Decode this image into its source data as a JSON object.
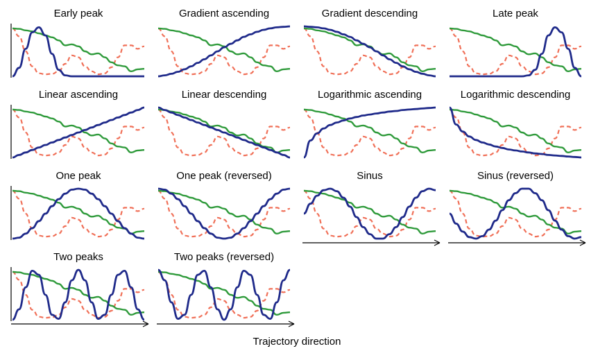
{
  "figure": {
    "xlabel": "Trajectory direction"
  },
  "colors": {
    "profile": "#1f2a8a",
    "green": "#2e9a3a",
    "dashed": "#f07058",
    "axis": "#000000"
  },
  "chart_data": {
    "type": "line",
    "ylim": [
      0,
      1
    ],
    "xlim": [
      0,
      1
    ],
    "grid": false,
    "shared_x": [
      0,
      0.05,
      0.1,
      0.15,
      0.2,
      0.25,
      0.3,
      0.35,
      0.4,
      0.45,
      0.5,
      0.55,
      0.6,
      0.65,
      0.7,
      0.75,
      0.8,
      0.85,
      0.9,
      0.95,
      1
    ],
    "background_series": {
      "green": [
        0.96,
        0.95,
        0.92,
        0.9,
        0.86,
        0.82,
        0.78,
        0.72,
        0.62,
        0.64,
        0.6,
        0.5,
        0.44,
        0.46,
        0.38,
        0.28,
        0.22,
        0.2,
        0.1,
        0.14,
        0.15
      ],
      "dashed": [
        0.96,
        0.8,
        0.5,
        0.2,
        0.06,
        0.04,
        0.05,
        0.1,
        0.25,
        0.42,
        0.38,
        0.2,
        0.1,
        0.04,
        0.06,
        0.18,
        0.38,
        0.62,
        0.62,
        0.55,
        0.6
      ]
    },
    "panels": [
      {
        "title": "Early peak",
        "y": [
          0.0,
          0.17,
          0.55,
          0.88,
          0.98,
          0.82,
          0.45,
          0.13,
          0.02,
          0.0,
          0.0,
          0.0,
          0.0,
          0.0,
          0.0,
          0.0,
          0.0,
          0.0,
          0.0,
          0.0,
          0.0
        ]
      },
      {
        "title": "Gradient ascending",
        "y": [
          0.0,
          0.02,
          0.05,
          0.09,
          0.14,
          0.2,
          0.27,
          0.34,
          0.42,
          0.5,
          0.58,
          0.65,
          0.72,
          0.79,
          0.84,
          0.89,
          0.93,
          0.96,
          0.98,
          0.99,
          1.0
        ]
      },
      {
        "title": "Gradient descending",
        "y": [
          1.0,
          0.99,
          0.98,
          0.96,
          0.93,
          0.89,
          0.84,
          0.79,
          0.72,
          0.65,
          0.58,
          0.5,
          0.42,
          0.34,
          0.27,
          0.2,
          0.14,
          0.09,
          0.05,
          0.02,
          0.0
        ]
      },
      {
        "title": "Late peak",
        "y": [
          0.0,
          0.0,
          0.0,
          0.0,
          0.0,
          0.0,
          0.0,
          0.0,
          0.0,
          0.0,
          0.0,
          0.0,
          0.02,
          0.13,
          0.45,
          0.82,
          0.98,
          0.88,
          0.55,
          0.17,
          0.0
        ]
      },
      {
        "title": "Linear ascending",
        "y": [
          0.0,
          0.05,
          0.1,
          0.15,
          0.2,
          0.25,
          0.3,
          0.35,
          0.4,
          0.45,
          0.5,
          0.55,
          0.6,
          0.65,
          0.7,
          0.75,
          0.8,
          0.85,
          0.9,
          0.95,
          1.0
        ]
      },
      {
        "title": "Linear descending",
        "y": [
          1.0,
          0.95,
          0.9,
          0.85,
          0.8,
          0.75,
          0.7,
          0.65,
          0.6,
          0.55,
          0.5,
          0.45,
          0.4,
          0.35,
          0.3,
          0.25,
          0.2,
          0.15,
          0.1,
          0.05,
          0.0
        ]
      },
      {
        "title": "Logarithmic ascending",
        "y": [
          0.0,
          0.34,
          0.48,
          0.58,
          0.65,
          0.7,
          0.74,
          0.78,
          0.81,
          0.84,
          0.86,
          0.88,
          0.9,
          0.92,
          0.93,
          0.95,
          0.96,
          0.97,
          0.98,
          0.99,
          1.0
        ]
      },
      {
        "title": "Logarithmic descending",
        "y": [
          1.0,
          0.66,
          0.52,
          0.42,
          0.35,
          0.3,
          0.26,
          0.22,
          0.19,
          0.16,
          0.14,
          0.12,
          0.1,
          0.08,
          0.07,
          0.05,
          0.04,
          0.03,
          0.02,
          0.01,
          0.0
        ]
      },
      {
        "title": "One peak",
        "y": [
          0.0,
          0.02,
          0.1,
          0.21,
          0.35,
          0.5,
          0.65,
          0.79,
          0.9,
          0.98,
          1.0,
          0.98,
          0.9,
          0.79,
          0.65,
          0.5,
          0.35,
          0.21,
          0.1,
          0.02,
          0.0
        ]
      },
      {
        "title": "One peak (reversed)",
        "y": [
          1.0,
          0.98,
          0.9,
          0.79,
          0.65,
          0.5,
          0.35,
          0.21,
          0.1,
          0.02,
          0.0,
          0.02,
          0.1,
          0.21,
          0.35,
          0.5,
          0.65,
          0.79,
          0.9,
          0.98,
          1.0
        ]
      },
      {
        "title": "Sinus",
        "y": [
          0.5,
          0.7,
          0.86,
          0.97,
          1.0,
          0.95,
          0.82,
          0.64,
          0.43,
          0.23,
          0.09,
          0.0,
          0.0,
          0.09,
          0.23,
          0.43,
          0.64,
          0.82,
          0.95,
          1.0,
          0.97
        ]
      },
      {
        "title": "Sinus (reversed)",
        "y": [
          0.5,
          0.3,
          0.14,
          0.03,
          0.0,
          0.05,
          0.18,
          0.36,
          0.57,
          0.77,
          0.91,
          1.0,
          1.0,
          0.91,
          0.77,
          0.57,
          0.36,
          0.18,
          0.05,
          0.0,
          0.03
        ]
      },
      {
        "title": "Two peaks",
        "y": [
          0.0,
          0.21,
          0.65,
          0.98,
          0.9,
          0.5,
          0.1,
          0.02,
          0.35,
          0.79,
          1.0,
          0.79,
          0.35,
          0.02,
          0.1,
          0.5,
          0.9,
          0.98,
          0.65,
          0.21,
          0.0
        ]
      },
      {
        "title": "Two peaks (reversed)",
        "y": [
          1.0,
          0.79,
          0.35,
          0.02,
          0.1,
          0.5,
          0.9,
          0.98,
          0.65,
          0.21,
          0.0,
          0.21,
          0.65,
          0.98,
          0.9,
          0.5,
          0.1,
          0.02,
          0.35,
          0.79,
          1.0
        ]
      }
    ]
  }
}
